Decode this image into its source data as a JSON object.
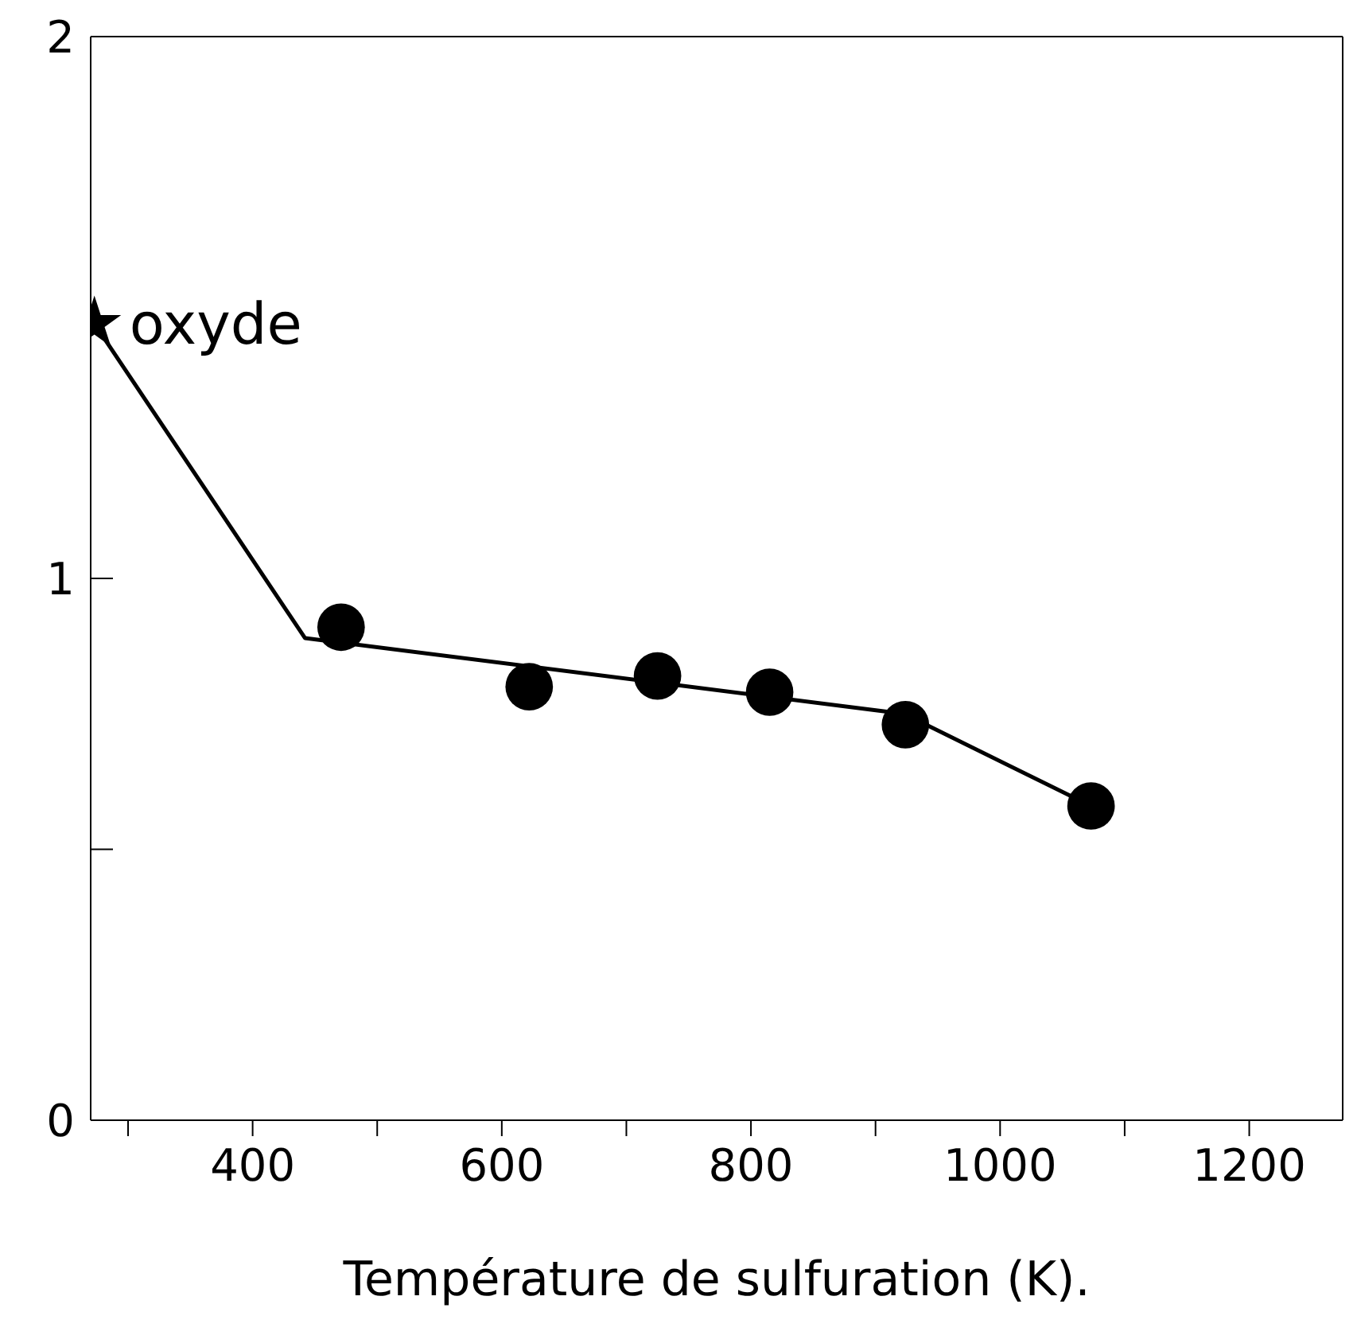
{
  "chart_data": {
    "type": "scatter",
    "xlabel": "Température de sulfuration (K).",
    "xlim": [
      270,
      1275
    ],
    "xticks": [
      {
        "value": 300,
        "label": null
      },
      400,
      {
        "value": 500,
        "label": null
      },
      600,
      {
        "value": 700,
        "label": null
      },
      800,
      {
        "value": 900,
        "label": null
      },
      1000,
      {
        "value": 1100,
        "label": null
      },
      1200
    ],
    "ylim": [
      0,
      2
    ],
    "yticks": [
      0,
      {
        "value": 0.5,
        "label": null
      },
      1,
      2
    ],
    "series": [
      {
        "type": "line",
        "color": "#000000",
        "marker": "none",
        "x": [
          273,
          442,
          923,
          1073
        ],
        "values": [
          1.47,
          0.89,
          0.75,
          0.58
        ]
      },
      {
        "color": "#000000",
        "marker": "star",
        "x": [
          273
        ],
        "values": [
          1.47
        ]
      },
      {
        "color": "#000000",
        "marker": "circle",
        "x": [
          471,
          622,
          725,
          815,
          924,
          1073
        ],
        "values": [
          0.91,
          0.8,
          0.82,
          0.79,
          0.73,
          0.58
        ]
      }
    ],
    "annotations": [
      {
        "text": "oxyde",
        "x": 273,
        "y": 1.47
      }
    ]
  }
}
